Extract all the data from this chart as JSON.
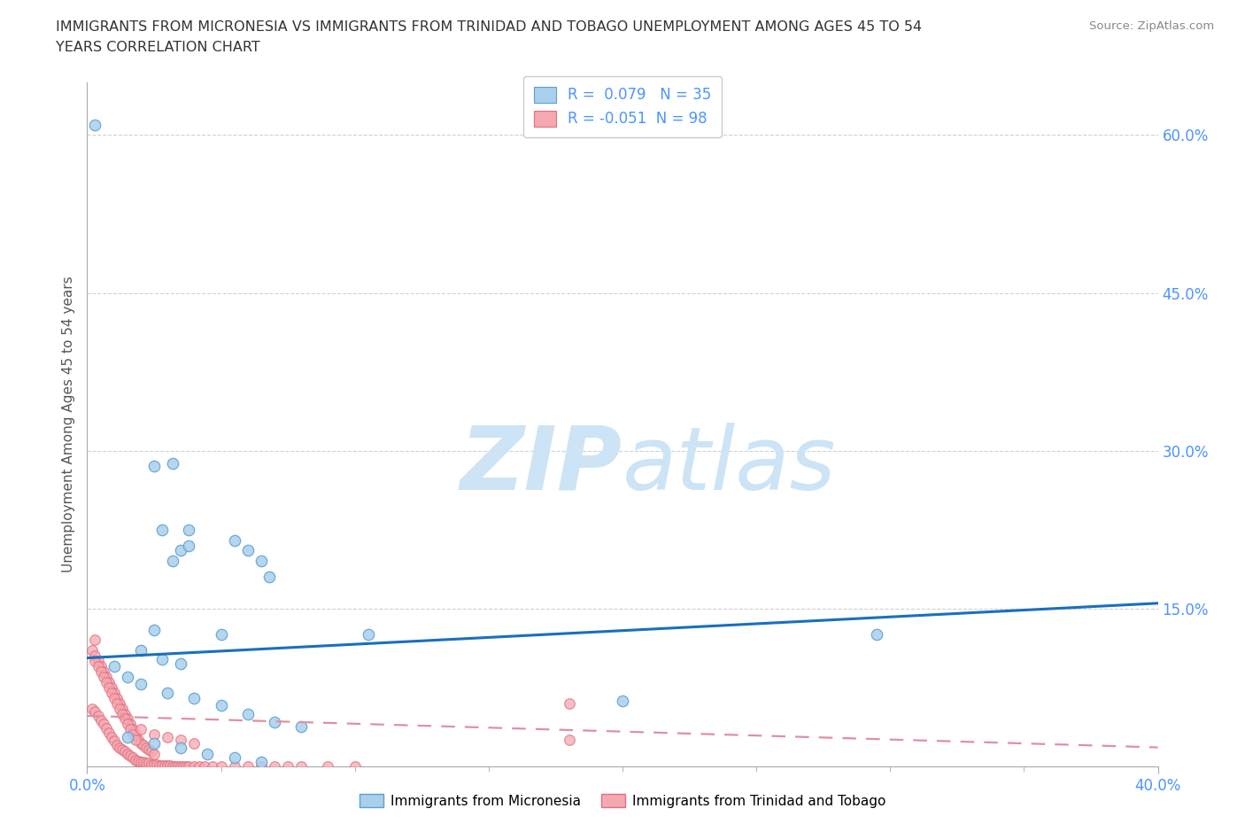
{
  "title_line1": "IMMIGRANTS FROM MICRONESIA VS IMMIGRANTS FROM TRINIDAD AND TOBAGO UNEMPLOYMENT AMONG AGES 45 TO 54",
  "title_line2": "YEARS CORRELATION CHART",
  "source": "Source: ZipAtlas.com",
  "ylabel": "Unemployment Among Ages 45 to 54 years",
  "xlim": [
    0.0,
    0.4
  ],
  "ylim": [
    0.0,
    0.65
  ],
  "yticks": [
    0.15,
    0.3,
    0.45,
    0.6
  ],
  "ytick_labels": [
    "15.0%",
    "30.0%",
    "45.0%",
    "60.0%"
  ],
  "xtick_left_label": "0.0%",
  "xtick_right_label": "40.0%",
  "micronesia_color": "#aacfeb",
  "trinidad_color": "#f5a8b0",
  "micronesia_edge": "#5a9fd4",
  "trinidad_edge": "#e07080",
  "trend_blue": "#1a6fbd",
  "trend_pink": "#e090a0",
  "R_micronesia": "0.079",
  "N_micronesia": "35",
  "R_trinidad": "-0.051",
  "N_trinidad": "98",
  "blue_trend_x0": 0.0,
  "blue_trend_y0": 0.103,
  "blue_trend_x1": 0.4,
  "blue_trend_y1": 0.155,
  "pink_trend_x0": 0.0,
  "pink_trend_y0": 0.048,
  "pink_trend_x1": 0.4,
  "pink_trend_y1": 0.018,
  "micronesia_x": [
    0.003,
    0.025,
    0.032,
    0.028,
    0.038,
    0.032,
    0.035,
    0.038,
    0.055,
    0.06,
    0.065,
    0.068,
    0.025,
    0.05,
    0.105,
    0.2,
    0.295,
    0.02,
    0.028,
    0.035,
    0.01,
    0.015,
    0.02,
    0.03,
    0.04,
    0.05,
    0.06,
    0.07,
    0.08,
    0.015,
    0.025,
    0.035,
    0.045,
    0.055,
    0.065
  ],
  "micronesia_y": [
    0.61,
    0.285,
    0.288,
    0.225,
    0.225,
    0.195,
    0.205,
    0.21,
    0.215,
    0.205,
    0.195,
    0.18,
    0.13,
    0.125,
    0.125,
    0.062,
    0.125,
    0.11,
    0.102,
    0.098,
    0.095,
    0.085,
    0.078,
    0.07,
    0.065,
    0.058,
    0.05,
    0.042,
    0.038,
    0.028,
    0.022,
    0.018,
    0.012,
    0.008,
    0.004
  ],
  "trinidad_x": [
    0.002,
    0.003,
    0.004,
    0.005,
    0.006,
    0.007,
    0.008,
    0.009,
    0.01,
    0.011,
    0.012,
    0.013,
    0.014,
    0.015,
    0.016,
    0.017,
    0.018,
    0.019,
    0.02,
    0.021,
    0.022,
    0.023,
    0.024,
    0.025,
    0.003,
    0.004,
    0.005,
    0.006,
    0.007,
    0.008,
    0.009,
    0.01,
    0.011,
    0.012,
    0.013,
    0.014,
    0.015,
    0.016,
    0.017,
    0.018,
    0.002,
    0.003,
    0.004,
    0.005,
    0.006,
    0.007,
    0.008,
    0.009,
    0.01,
    0.011,
    0.012,
    0.013,
    0.014,
    0.015,
    0.016,
    0.017,
    0.018,
    0.019,
    0.02,
    0.021,
    0.022,
    0.023,
    0.024,
    0.025,
    0.026,
    0.027,
    0.028,
    0.029,
    0.03,
    0.031,
    0.032,
    0.033,
    0.034,
    0.035,
    0.036,
    0.037,
    0.038,
    0.04,
    0.042,
    0.044,
    0.047,
    0.05,
    0.055,
    0.06,
    0.065,
    0.07,
    0.075,
    0.08,
    0.09,
    0.1,
    0.02,
    0.025,
    0.03,
    0.035,
    0.04,
    0.18,
    0.18,
    0.003
  ],
  "trinidad_y": [
    0.11,
    0.105,
    0.1,
    0.095,
    0.09,
    0.085,
    0.08,
    0.075,
    0.07,
    0.065,
    0.06,
    0.055,
    0.05,
    0.045,
    0.04,
    0.035,
    0.03,
    0.025,
    0.022,
    0.02,
    0.018,
    0.016,
    0.014,
    0.012,
    0.1,
    0.095,
    0.09,
    0.085,
    0.08,
    0.075,
    0.07,
    0.065,
    0.06,
    0.055,
    0.05,
    0.045,
    0.04,
    0.035,
    0.03,
    0.025,
    0.055,
    0.052,
    0.048,
    0.044,
    0.04,
    0.036,
    0.032,
    0.028,
    0.024,
    0.02,
    0.018,
    0.016,
    0.014,
    0.012,
    0.01,
    0.008,
    0.006,
    0.005,
    0.004,
    0.004,
    0.003,
    0.003,
    0.002,
    0.002,
    0.002,
    0.001,
    0.001,
    0.001,
    0.001,
    0.001,
    0.0,
    0.0,
    0.0,
    0.0,
    0.0,
    0.0,
    0.0,
    0.0,
    0.0,
    0.0,
    0.0,
    0.0,
    0.0,
    0.0,
    0.0,
    0.0,
    0.0,
    0.0,
    0.0,
    0.0,
    0.035,
    0.03,
    0.028,
    0.025,
    0.022,
    0.06,
    0.025,
    0.12
  ],
  "watermark_zip": "ZIP",
  "watermark_atlas": "atlas",
  "watermark_color": "#cce4f5",
  "background_color": "#ffffff",
  "grid_color": "#cccccc",
  "tick_color": "#4d94ff",
  "label_color": "#555555",
  "legend_text_color": "#4d94ff"
}
